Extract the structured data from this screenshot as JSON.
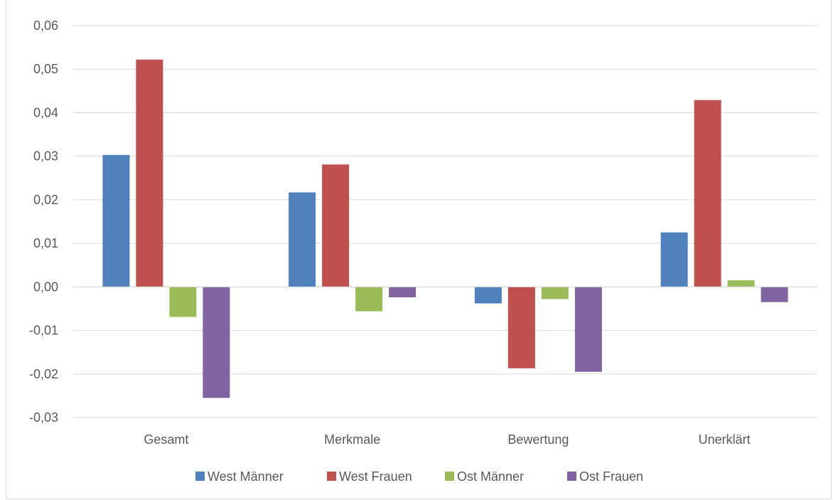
{
  "chart_data": {
    "type": "bar",
    "title": "",
    "xlabel": "",
    "ylabel": "",
    "categories": [
      "Gesamt",
      "Merkmale",
      "Bewertung",
      "Unerklärt"
    ],
    "series": [
      {
        "name": "West Männer",
        "color": "#4f81bd",
        "values": [
          0.0303,
          0.0217,
          -0.0038,
          0.0125
        ]
      },
      {
        "name": "West Frauen",
        "color": "#c0504d",
        "values": [
          0.0522,
          0.0281,
          -0.0187,
          0.0429
        ]
      },
      {
        "name": "Ost Männer",
        "color": "#9bbb59",
        "values": [
          -0.0069,
          -0.0056,
          -0.0028,
          0.0015
        ]
      },
      {
        "name": "Ost Frauen",
        "color": "#8064a2",
        "values": [
          -0.0255,
          -0.0024,
          -0.0195,
          -0.0035
        ]
      }
    ],
    "ylim": [
      -0.03,
      0.06
    ],
    "yticks": [
      "0,06",
      "0,05",
      "0,04",
      "0,03",
      "0,02",
      "0,01",
      "0,00",
      "-0,01",
      "-0,02",
      "-0,03"
    ],
    "grid": true,
    "legend": "bottom"
  }
}
